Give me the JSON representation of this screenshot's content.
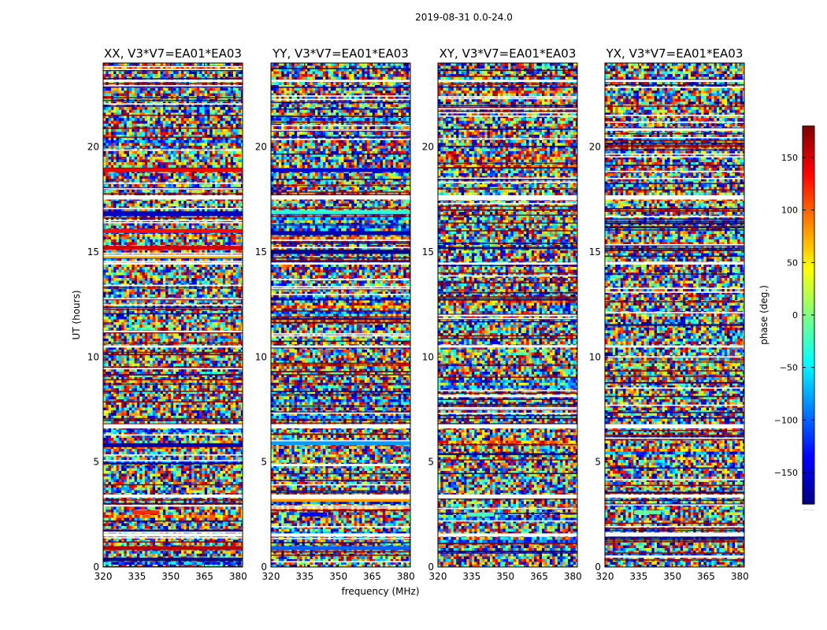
{
  "chart_data": {
    "type": "heatmap",
    "title": "2019-08-31 0.0-24.0",
    "xlabel": "frequency (MHz)",
    "ylabel": "UT (hours)",
    "xlim": [
      320,
      382
    ],
    "ylim": [
      0,
      24
    ],
    "x_ticks": [
      "320",
      "335",
      "350",
      "365",
      "380"
    ],
    "x_tick_values": [
      320,
      335,
      350,
      365,
      380
    ],
    "y_ticks": [
      "0",
      "5",
      "10",
      "15",
      "20"
    ],
    "y_tick_values": [
      0,
      5,
      10,
      15,
      20
    ],
    "panels": [
      {
        "title": "XX, V3*V7=EA01*EA03",
        "features": [
          {
            "ut": 0.9,
            "phase": 160,
            "xmin": 320,
            "xmax": 382
          },
          {
            "ut": 2.6,
            "phase": 120,
            "xmin": 333,
            "xmax": 345
          },
          {
            "ut": 5.8,
            "phase": -165,
            "xmin": 320,
            "xmax": 382
          },
          {
            "ut": 14.8,
            "phase": 70,
            "xmin": 320,
            "xmax": 382
          },
          {
            "ut": 15.2,
            "phase": 150,
            "xmin": 320,
            "xmax": 382
          },
          {
            "ut": 16.0,
            "phase": 130,
            "xmin": 320,
            "xmax": 382
          },
          {
            "ut": 16.8,
            "phase": -155,
            "xmin": 320,
            "xmax": 382
          },
          {
            "ut": 18.9,
            "phase": 140,
            "xmin": 320,
            "xmax": 382
          }
        ]
      },
      {
        "title": "YY, V3*V7=EA01*EA03",
        "features": [
          {
            "ut": 0.9,
            "phase": -100,
            "xmin": 320,
            "xmax": 382
          },
          {
            "ut": 2.5,
            "phase": -140,
            "xmin": 333,
            "xmax": 345
          },
          {
            "ut": 3.2,
            "phase": 80,
            "xmin": 320,
            "xmax": 382
          },
          {
            "ut": 5.9,
            "phase": -80,
            "xmin": 320,
            "xmax": 382
          },
          {
            "ut": 15.0,
            "phase": -175,
            "xmin": 320,
            "xmax": 382
          },
          {
            "ut": 15.9,
            "phase": -165,
            "xmin": 320,
            "xmax": 382
          },
          {
            "ut": 16.9,
            "phase": -30,
            "xmin": 320,
            "xmax": 382
          },
          {
            "ut": 18.9,
            "phase": -150,
            "xmin": 320,
            "xmax": 382
          }
        ]
      },
      {
        "title": "XY, V3*V7=EA01*EA03",
        "features": [
          {
            "ut": 2.5,
            "phase": -20,
            "xmin": 333,
            "xmax": 345
          }
        ]
      },
      {
        "title": "YX, V3*V7=EA01*EA03",
        "features": [
          {
            "ut": 2.6,
            "phase": -10,
            "xmin": 333,
            "xmax": 345
          }
        ]
      }
    ],
    "flagged_ut_ranges": [
      [
        1.45,
        1.6
      ],
      [
        3.3,
        3.45
      ],
      [
        6.6,
        6.8
      ],
      [
        10.45,
        10.55
      ],
      [
        14.4,
        14.5
      ],
      [
        17.5,
        17.7
      ],
      [
        23.1,
        23.2
      ]
    ],
    "colorbar": {
      "label": "phase (deg.)",
      "range": [
        -180,
        180
      ],
      "ticks": [
        "150",
        "100",
        "50",
        "0",
        "−50",
        "−100",
        "−150"
      ],
      "tick_values": [
        150,
        100,
        50,
        0,
        -50,
        -100,
        -150
      ],
      "colormap": "jet",
      "offset_text": "......"
    }
  }
}
